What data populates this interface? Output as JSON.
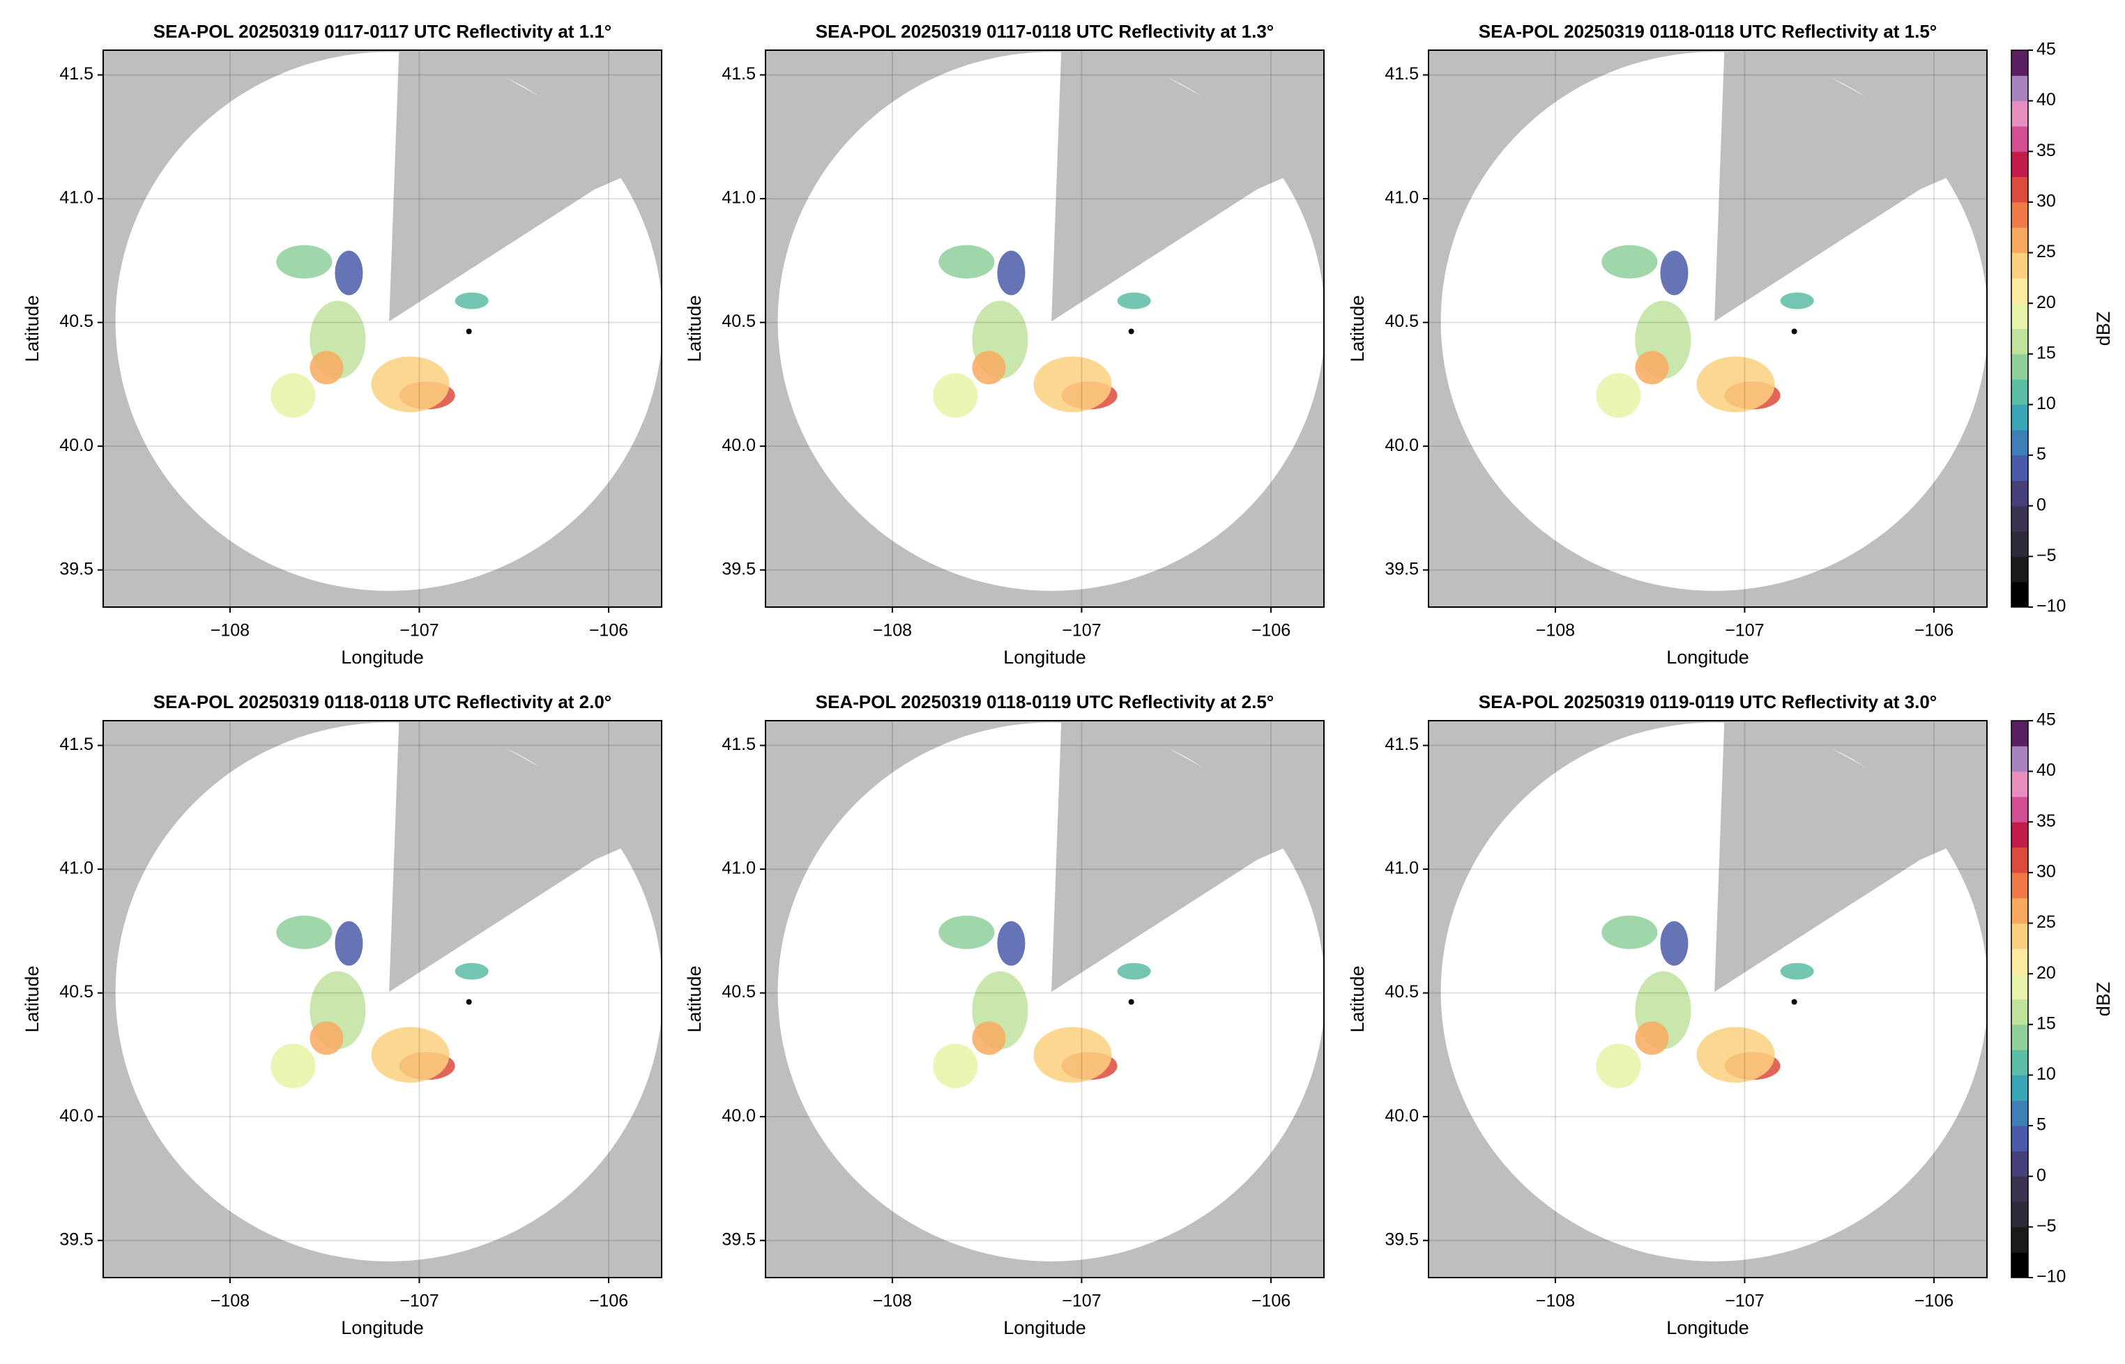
{
  "chart_data": [
    {
      "type": "radar-map",
      "title": "SEA-POL 20250319 0117-0117 UTC Reflectivity at 1.1°",
      "xlabel": "Longitude",
      "ylabel": "Latitude",
      "xlim": [
        -108.67,
        -105.72
      ],
      "ylim": [
        39.35,
        41.6
      ],
      "xticks": [
        {
          "value": -108,
          "label": "−108"
        },
        {
          "value": -107,
          "label": "−107"
        },
        {
          "value": -106,
          "label": "−106"
        }
      ],
      "yticks": [
        39.5,
        {
          "value": 40,
          "label": "40.0"
        },
        40.5,
        {
          "value": 41,
          "label": "41.0"
        },
        41.5
      ],
      "grid": true
    },
    {
      "type": "radar-map",
      "title": "SEA-POL 20250319 0117-0118 UTC Reflectivity at 1.3°",
      "xlabel": "Longitude",
      "ylabel": "Latitude",
      "xlim": [
        -108.67,
        -105.72
      ],
      "ylim": [
        39.35,
        41.6
      ],
      "xticks": [
        {
          "value": -108,
          "label": "−108"
        },
        {
          "value": -107,
          "label": "−107"
        },
        {
          "value": -106,
          "label": "−106"
        }
      ],
      "yticks": [
        39.5,
        {
          "value": 40,
          "label": "40.0"
        },
        40.5,
        {
          "value": 41,
          "label": "41.0"
        },
        41.5
      ],
      "grid": true
    },
    {
      "type": "radar-map",
      "title": "SEA-POL 20250319 0118-0118 UTC Reflectivity at 1.5°",
      "xlabel": "Longitude",
      "ylabel": "Latitude",
      "xlim": [
        -108.67,
        -105.72
      ],
      "ylim": [
        39.35,
        41.6
      ],
      "xticks": [
        {
          "value": -108,
          "label": "−108"
        },
        {
          "value": -107,
          "label": "−107"
        },
        {
          "value": -106,
          "label": "−106"
        }
      ],
      "yticks": [
        39.5,
        {
          "value": 40,
          "label": "40.0"
        },
        40.5,
        {
          "value": 41,
          "label": "41.0"
        },
        41.5
      ],
      "grid": true,
      "colorbar": {
        "label": "dBZ",
        "lim": [
          -10,
          45
        ],
        "ticks": [
          {
            "value": -10,
            "label": "−10"
          },
          {
            "value": -5,
            "label": "−5"
          },
          0,
          5,
          10,
          15,
          20,
          25,
          30,
          35,
          40,
          45
        ],
        "colors": [
          "#000000",
          "#1a1a1a",
          "#2e2a3a",
          "#3b3350",
          "#45407a",
          "#4b5aa8",
          "#3f7fb8",
          "#3aa5b5",
          "#5cbca6",
          "#8fd09b",
          "#bfe29d",
          "#e7f3a6",
          "#fbeaa0",
          "#fcd07f",
          "#f9a95f",
          "#ef7a47",
          "#dc4a3b",
          "#c21d4a",
          "#d44f92",
          "#e98fbf",
          "#a784c0",
          "#5a1f5f"
        ]
      }
    },
    {
      "type": "radar-map",
      "title": "SEA-POL 20250319 0118-0118 UTC Reflectivity at 2.0°",
      "xlabel": "Longitude",
      "ylabel": "Latitude",
      "xlim": [
        -108.67,
        -105.72
      ],
      "ylim": [
        39.35,
        41.6
      ],
      "xticks": [
        {
          "value": -108,
          "label": "−108"
        },
        {
          "value": -107,
          "label": "−107"
        },
        {
          "value": -106,
          "label": "−106"
        }
      ],
      "yticks": [
        39.5,
        {
          "value": 40,
          "label": "40.0"
        },
        40.5,
        {
          "value": 41,
          "label": "41.0"
        },
        41.5
      ],
      "grid": true
    },
    {
      "type": "radar-map",
      "title": "SEA-POL 20250319 0118-0119 UTC Reflectivity at 2.5°",
      "xlabel": "Longitude",
      "ylabel": "Latitude",
      "xlim": [
        -108.67,
        -105.72
      ],
      "ylim": [
        39.35,
        41.6
      ],
      "xticks": [
        {
          "value": -108,
          "label": "−108"
        },
        {
          "value": -107,
          "label": "−107"
        },
        {
          "value": -106,
          "label": "−106"
        }
      ],
      "yticks": [
        39.5,
        {
          "value": 40,
          "label": "40.0"
        },
        40.5,
        {
          "value": 41,
          "label": "41.0"
        },
        41.5
      ],
      "grid": true
    },
    {
      "type": "radar-map",
      "title": "SEA-POL 20250319 0119-0119 UTC Reflectivity at 3.0°",
      "xlabel": "Longitude",
      "ylabel": "Latitude",
      "xlim": [
        -108.67,
        -105.72
      ],
      "ylim": [
        39.35,
        41.6
      ],
      "xticks": [
        {
          "value": -108,
          "label": "−108"
        },
        {
          "value": -107,
          "label": "−107"
        },
        {
          "value": -106,
          "label": "−106"
        }
      ],
      "yticks": [
        39.5,
        {
          "value": 40,
          "label": "40.0"
        },
        40.5,
        {
          "value": 41,
          "label": "41.0"
        },
        41.5
      ],
      "grid": true,
      "colorbar": {
        "label": "dBZ",
        "lim": [
          -10,
          45
        ],
        "ticks": [
          {
            "value": -10,
            "label": "−10"
          },
          {
            "value": -5,
            "label": "−5"
          },
          0,
          5,
          10,
          15,
          20,
          25,
          30,
          35,
          40,
          45
        ],
        "colors": [
          "#000000",
          "#1a1a1a",
          "#2e2a3a",
          "#3b3350",
          "#45407a",
          "#4b5aa8",
          "#3f7fb8",
          "#3aa5b5",
          "#5cbca6",
          "#8fd09b",
          "#bfe29d",
          "#e7f3a6",
          "#fbeaa0",
          "#fcd07f",
          "#f9a95f",
          "#ef7a47",
          "#dc4a3b",
          "#c21d4a",
          "#d44f92",
          "#e98fbf",
          "#a784c0",
          "#5a1f5f"
        ]
      }
    }
  ]
}
